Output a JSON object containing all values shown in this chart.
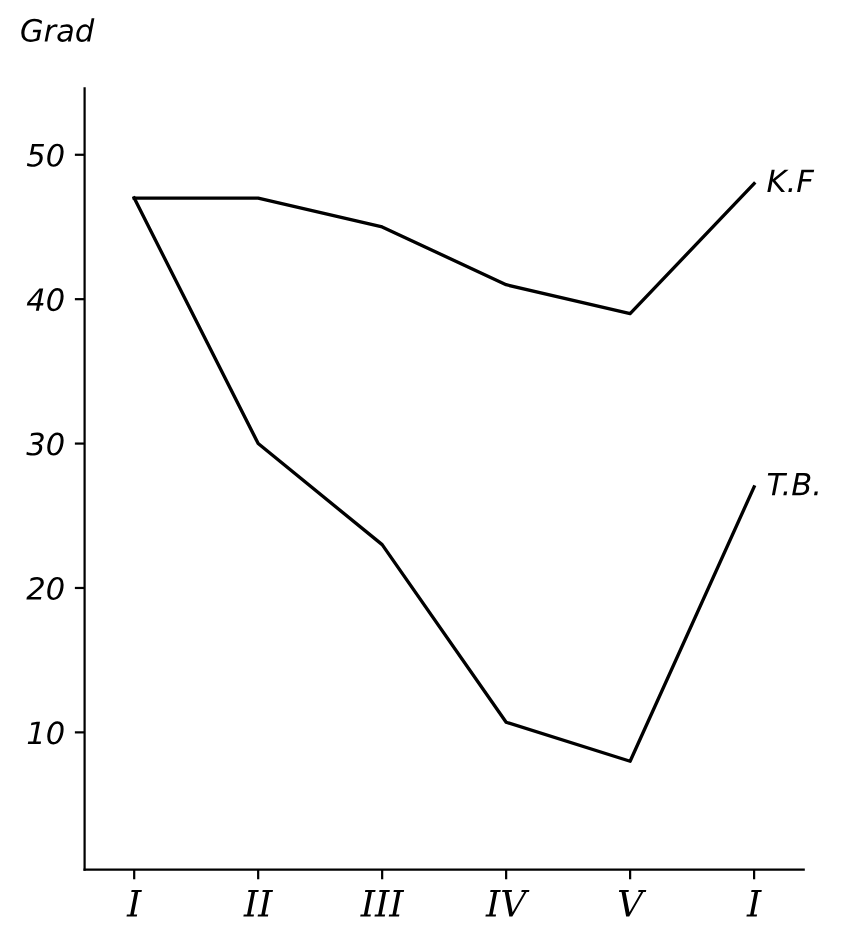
{
  "chart_data": {
    "type": "line",
    "ylabel": "Grad",
    "categories": [
      "I",
      "II",
      "III",
      "IV",
      "V",
      "I"
    ],
    "series": [
      {
        "name": "K.F",
        "color": "#000000",
        "values": [
          47,
          47,
          45,
          41,
          39,
          48
        ]
      },
      {
        "name": "T.B.",
        "color": "#000000",
        "values": [
          47,
          30,
          23,
          10.7,
          8,
          27
        ]
      }
    ],
    "ylim": [
      0.5,
      54.6
    ],
    "yticks": [
      10,
      20,
      30,
      40,
      50
    ],
    "grid": false,
    "legend": false,
    "marker": "none",
    "line_style": "solid"
  }
}
